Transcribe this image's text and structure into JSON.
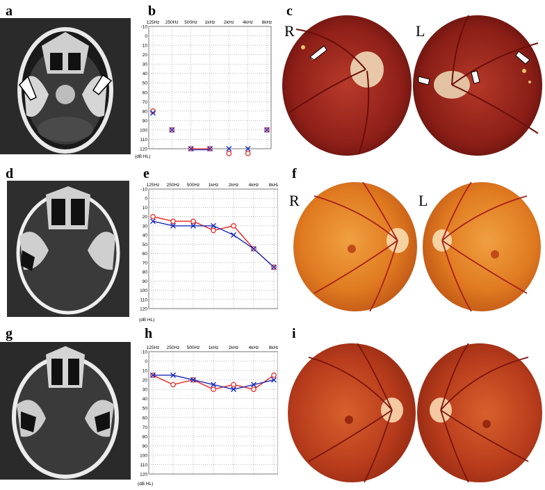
{
  "panels": {
    "a": "a",
    "b": "b",
    "c": "c",
    "d": "d",
    "e": "e",
    "f": "f",
    "g": "g",
    "h": "h",
    "i": "i"
  },
  "fundus_labels": {
    "c": {
      "right": "R",
      "left": "L"
    },
    "f": {
      "right": "R",
      "left": "L"
    },
    "i": {
      "right": "R",
      "left": "L"
    }
  },
  "colors": {
    "right_ear": "#e8211c",
    "left_ear": "#1a2bb8"
  },
  "chart_data": [
    {
      "panel": "b",
      "type": "line",
      "categories": [
        "125Hz",
        "250Hz",
        "500Hz",
        "1kHz",
        "2kHz",
        "4kHz",
        "8kHz"
      ],
      "y_ticks": [
        "-10",
        "0",
        "10",
        "20",
        "30",
        "40",
        "50",
        "60",
        "70",
        "80",
        "90",
        "100",
        "110",
        "120"
      ],
      "ylim": [
        -10,
        120
      ],
      "y_inverted": true,
      "unit_label": "(dB HL)",
      "grid": true,
      "connected": false,
      "series": [
        {
          "ear": "right",
          "marker": "o",
          "values": [
            80,
            100,
            120,
            120,
            125,
            125,
            100
          ]
        },
        {
          "ear": "left",
          "marker": "x",
          "values": [
            82,
            100,
            120,
            120,
            120,
            120,
            100
          ]
        }
      ]
    },
    {
      "panel": "e",
      "type": "line",
      "categories": [
        "125Hz",
        "250Hz",
        "500Hz",
        "1kHz",
        "2kHz",
        "4kHz",
        "8kHz"
      ],
      "y_ticks": [
        "-10",
        "0",
        "10",
        "20",
        "30",
        "40",
        "50",
        "60",
        "70",
        "80",
        "90",
        "100",
        "110",
        "120"
      ],
      "ylim": [
        -10,
        120
      ],
      "y_inverted": true,
      "unit_label": "(dB HL)",
      "grid": true,
      "connected": true,
      "series": [
        {
          "ear": "right",
          "marker": "o",
          "values": [
            20,
            25,
            25,
            35,
            30,
            55,
            75
          ]
        },
        {
          "ear": "left",
          "marker": "x",
          "values": [
            25,
            30,
            30,
            30,
            40,
            55,
            75
          ]
        }
      ]
    },
    {
      "panel": "h",
      "type": "line",
      "categories": [
        "125Hz",
        "250Hz",
        "500Hz",
        "1kHz",
        "2kHz",
        "4kHz",
        "8kHz"
      ],
      "y_ticks": [
        "-10",
        "0",
        "10",
        "20",
        "30",
        "40",
        "50",
        "60",
        "70",
        "80",
        "90",
        "100",
        "110",
        "120"
      ],
      "ylim": [
        -10,
        120
      ],
      "y_inverted": true,
      "unit_label": "(dB HL)",
      "grid": true,
      "connected": true,
      "series": [
        {
          "ear": "right",
          "marker": "o",
          "values": [
            15,
            25,
            20,
            30,
            25,
            30,
            15
          ]
        },
        {
          "ear": "left",
          "marker": "x",
          "values": [
            15,
            15,
            20,
            25,
            30,
            25,
            20
          ]
        }
      ]
    }
  ]
}
